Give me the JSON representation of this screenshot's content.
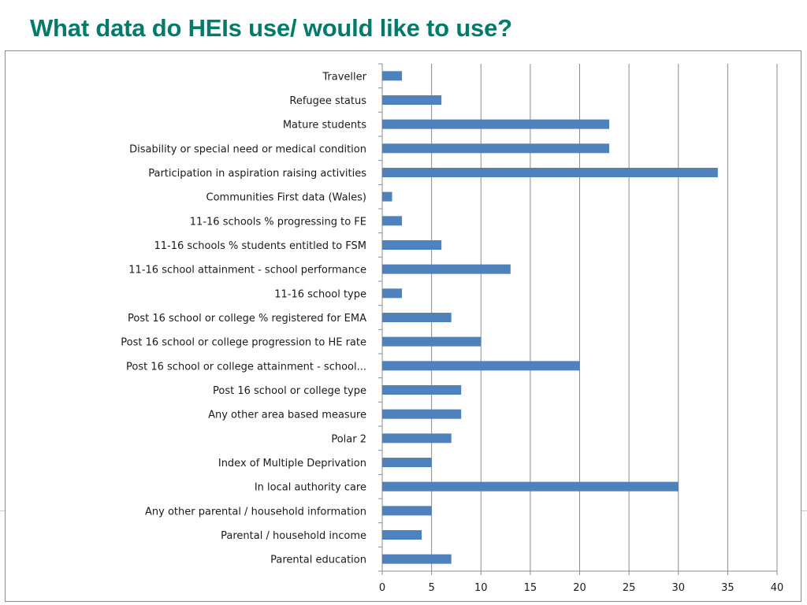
{
  "slide": {
    "title": "What data do HEIs use/ would like to use?"
  },
  "colors": {
    "title": "#007a6b",
    "bar": "#4f81bd",
    "grid": "#8c8c8c"
  },
  "chart_data": {
    "type": "bar",
    "orientation": "horizontal",
    "title": "",
    "xlabel": "",
    "ylabel": "",
    "xlim": [
      0,
      40
    ],
    "ticks": [
      0,
      5,
      10,
      15,
      20,
      25,
      30,
      35,
      40
    ],
    "grid": true,
    "legend": "none",
    "categories": [
      "Traveller",
      "Refugee status",
      "Mature students",
      "Disability or special need or medical condition",
      "Participation in aspiration raising activities",
      "Communities First data (Wales)",
      "11-16 schools % progressing to FE",
      "11-16 schools % students entitled to FSM",
      "11-16 school attainment - school performance",
      "11-16 school type",
      "Post 16 school or college % registered for EMA",
      "Post 16 school or college progression to HE rate",
      "Post 16 school or college attainment - school...",
      "Post 16 school or college type",
      "Any other area based measure",
      "Polar 2",
      "Index of Multiple Deprivation",
      "In local authority care",
      "Any other parental / household information",
      "Parental / household income",
      "Parental education"
    ],
    "values": [
      2,
      6,
      23,
      23,
      34,
      1,
      2,
      6,
      13,
      2,
      7,
      10,
      20,
      8,
      8,
      7,
      5,
      30,
      5,
      4,
      7
    ]
  }
}
